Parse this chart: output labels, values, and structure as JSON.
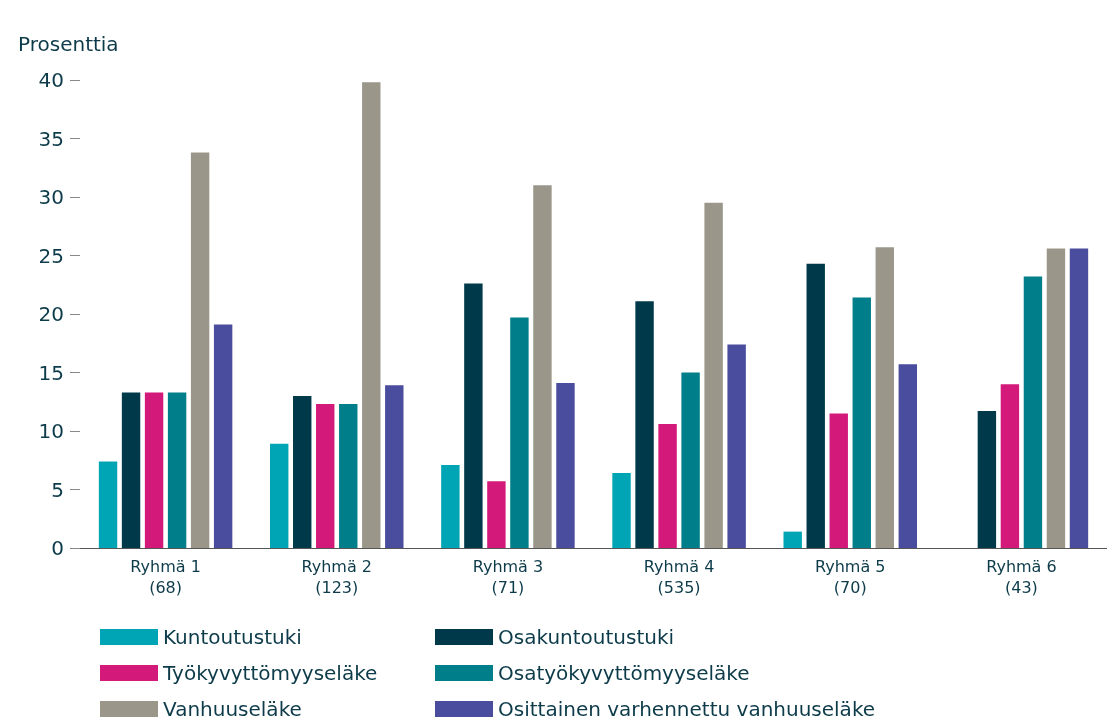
{
  "chart_data": {
    "type": "bar",
    "ylabel": "Prosenttia",
    "categories": [
      "Ryhmä 1\n(68)",
      "Ryhmä 2\n(123)",
      "Ryhmä 3\n(71)",
      "Ryhmä 4\n(535)",
      "Ryhmä 5\n(70)",
      "Ryhmä 6\n(43)"
    ],
    "series": [
      {
        "name": "Kuntoutustuki",
        "color": "#00a5b5",
        "values": [
          7.4,
          8.9,
          7.1,
          6.4,
          1.4,
          0
        ]
      },
      {
        "name": "Osakuntoutustuki",
        "color": "#003a4a",
        "values": [
          13.3,
          13.0,
          22.6,
          21.1,
          24.3,
          11.7
        ]
      },
      {
        "name": "Työkyvyttömyyseläke",
        "color": "#d3197a",
        "values": [
          13.3,
          12.3,
          5.7,
          10.6,
          11.5,
          14.0
        ]
      },
      {
        "name": "Osatyökyvyttömyyseläke",
        "color": "#007f8a",
        "values": [
          13.3,
          12.3,
          19.7,
          15.0,
          21.4,
          23.2
        ]
      },
      {
        "name": "Vanhuuseläke",
        "color": "#9a978a",
        "values": [
          33.8,
          39.8,
          31.0,
          29.5,
          25.7,
          25.6
        ]
      },
      {
        "name": "Osittainen varhennettu vanhuuseläke",
        "color": "#4a4c9e",
        "values": [
          19.1,
          13.9,
          14.1,
          17.4,
          15.7,
          25.6
        ]
      }
    ],
    "ylim": [
      0,
      40
    ],
    "yticks": [
      0,
      5,
      10,
      15,
      20,
      25,
      30,
      35,
      40
    ],
    "grid": false,
    "legend": "bottom"
  }
}
